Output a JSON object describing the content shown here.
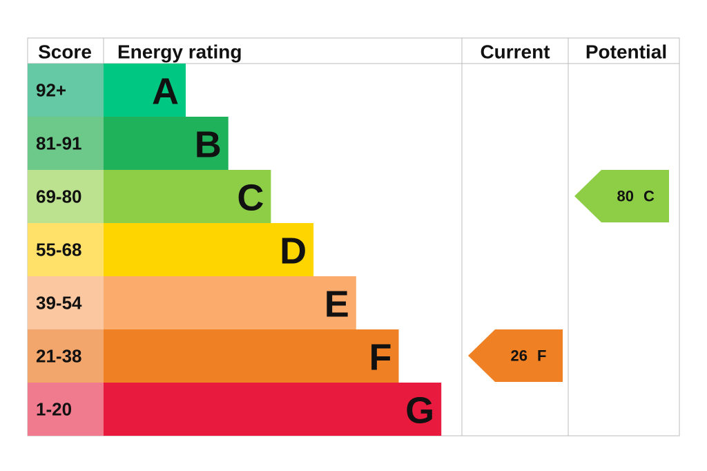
{
  "header": {
    "score": "Score",
    "rating": "Energy rating",
    "current": "Current",
    "potential": "Potential"
  },
  "bands": [
    {
      "score": "92+",
      "letter": "A",
      "color": "#00c781",
      "score_color": "#66c9a6"
    },
    {
      "score": "81-91",
      "letter": "B",
      "color": "#1fb25a",
      "score_color": "#6cc98a"
    },
    {
      "score": "69-80",
      "letter": "C",
      "color": "#8dce46",
      "score_color": "#bde28f"
    },
    {
      "score": "55-68",
      "letter": "D",
      "color": "#ffd500",
      "score_color": "#ffe169"
    },
    {
      "score": "39-54",
      "letter": "E",
      "color": "#fbac6d",
      "score_color": "#fbc7a0"
    },
    {
      "score": "21-38",
      "letter": "F",
      "color": "#ef8023",
      "score_color": "#f2a66c"
    },
    {
      "score": "1-20",
      "letter": "G",
      "color": "#e81a3e",
      "score_color": "#f07a8e"
    }
  ],
  "current": {
    "value": 26,
    "letter": "F"
  },
  "potential": {
    "value": 80,
    "letter": "C"
  }
}
